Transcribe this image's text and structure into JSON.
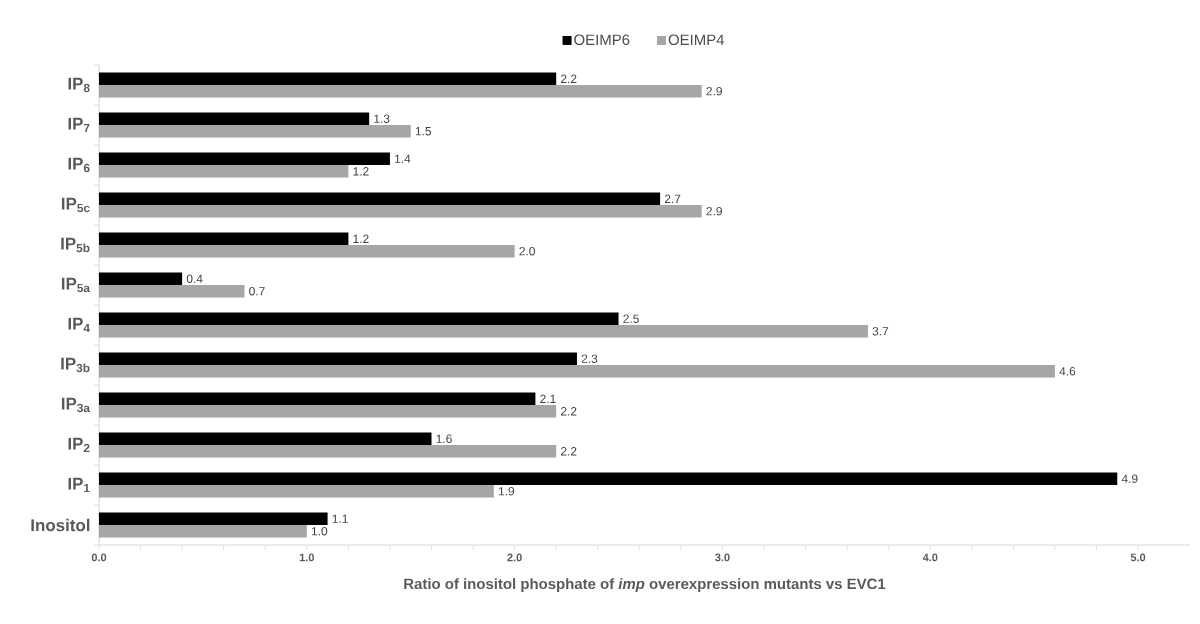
{
  "chart_data": {
    "type": "bar",
    "orientation": "horizontal",
    "categories": [
      "IP$_{8}$",
      "IP$_{7}$",
      "IP$_{6}$",
      "IP$_{5c}$",
      "IP$_{5b}$",
      "IP$_{5a}$",
      "IP$_{4}$",
      "IP$_{3b}$",
      "IP$_{3a}$",
      "IP$_{2}$",
      "IP$_{1}$",
      "Inositol"
    ],
    "series": [
      {
        "name": "OEIMP6",
        "color": "#000000",
        "values": [
          2.2,
          1.3,
          1.4,
          2.7,
          1.2,
          0.4,
          2.5,
          2.3,
          2.1,
          1.6,
          4.9,
          1.1
        ],
        "value_labels": [
          "2.2",
          "1.3",
          "1.4",
          "2.7",
          "1.2",
          "0.4",
          "2.5",
          "2.3",
          "2.1",
          "1.6",
          "4.9",
          "1.1"
        ]
      },
      {
        "name": "OEIMP4",
        "color": "#a6a6a6",
        "values": [
          2.9,
          1.5,
          1.2,
          2.9,
          2.0,
          0.7,
          3.7,
          4.6,
          2.2,
          2.2,
          1.9,
          1.0
        ],
        "value_labels": [
          "2.9",
          "1.5",
          "1.2",
          "2.9",
          "2.0",
          "0.7",
          "3.7",
          "4.6",
          "2.2",
          "2.2",
          "1.9",
          "1.0"
        ]
      }
    ],
    "xlim": [
      0,
      5.25
    ],
    "xticks": [
      {
        "value": 0,
        "label": "0.0"
      },
      {
        "value": 1,
        "label": "1.0"
      },
      {
        "value": 2,
        "label": "2.0"
      },
      {
        "value": 3,
        "label": "3.0"
      },
      {
        "value": 4,
        "label": "4.0"
      },
      {
        "value": 5,
        "label": "5.0"
      }
    ],
    "xlabel": "Ratio of inositol phosphate of *imp* overexpression mutants vs EVC1",
    "legend": "top",
    "grid": false
  }
}
